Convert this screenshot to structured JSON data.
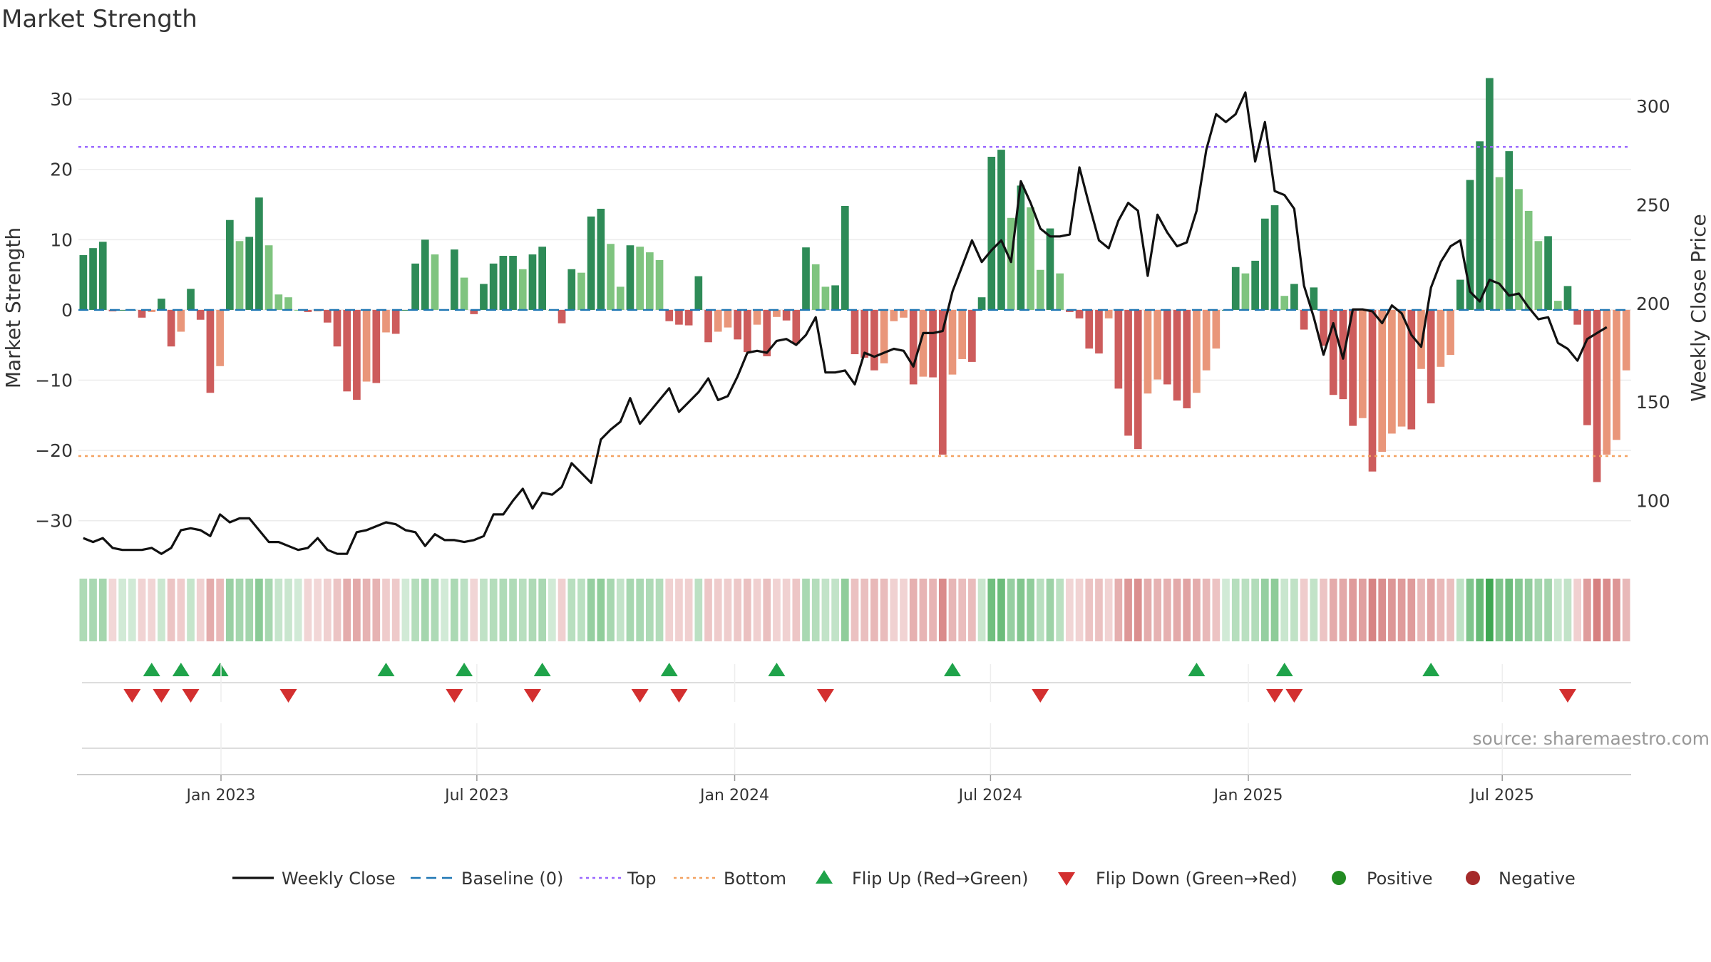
{
  "chart_data": {
    "type": "bar",
    "title": "Market Strength",
    "source": "source: sharemaestro.com",
    "x_ticks": [
      "Jan 2023",
      "Jul 2023",
      "Jan 2024",
      "Jul 2024",
      "Jan 2025",
      "Jul 2025"
    ],
    "y_left": {
      "label": "Market Strength",
      "ticks": [
        -30,
        -20,
        -10,
        0,
        10,
        20,
        30
      ],
      "range": [
        -35,
        36
      ]
    },
    "y_right": {
      "label": "Weekly Close Price",
      "ticks": [
        100,
        150,
        200,
        250,
        300
      ],
      "range": [
        72,
        325
      ]
    },
    "top_threshold": 23.2,
    "bottom_threshold": -20.8,
    "series": [
      {
        "name": "Weekly Close",
        "type": "line",
        "color": "#111111",
        "values": [
          81,
          79,
          81,
          76,
          75,
          75,
          75,
          76,
          73,
          76,
          85,
          86,
          85,
          82,
          93,
          89,
          91,
          91,
          85,
          79,
          79,
          77,
          75,
          76,
          81,
          75,
          73,
          73,
          84,
          85,
          87,
          89,
          88,
          85,
          84,
          77,
          83,
          80,
          80,
          79,
          80,
          82,
          93,
          93,
          100,
          106,
          96,
          104,
          103,
          107,
          119,
          114,
          109,
          131,
          136,
          140,
          152,
          139,
          145,
          151,
          157,
          145,
          150,
          155,
          162,
          151,
          153,
          163,
          175,
          176,
          175,
          181,
          182,
          179,
          184,
          193,
          165,
          165,
          166,
          159,
          175,
          173,
          175,
          177,
          176,
          168,
          185,
          185,
          186,
          206,
          219,
          232,
          221,
          227,
          232,
          221,
          262,
          251,
          238,
          234,
          234,
          235,
          269,
          250,
          232,
          228,
          242,
          251,
          247,
          214,
          245,
          236,
          229,
          231,
          247,
          278,
          296,
          292,
          296,
          307,
          272,
          292,
          257,
          255,
          248,
          209,
          193,
          174,
          190,
          172,
          197,
          197,
          196,
          190,
          199,
          195,
          184,
          178,
          208,
          221,
          229,
          232,
          206,
          201,
          212,
          210,
          204,
          205,
          198,
          192,
          193,
          180,
          177,
          171,
          182,
          185,
          188
        ]
      },
      {
        "name": "Market Strength",
        "type": "bar",
        "values": [
          7.8,
          8.8,
          9.7,
          -0.2,
          0.0,
          0.0,
          -1.1,
          -0.3,
          1.6,
          -5.2,
          -3.1,
          3.0,
          -1.4,
          -11.8,
          -8.0,
          12.8,
          9.8,
          10.4,
          16.0,
          9.2,
          2.2,
          1.8,
          0.0,
          -0.3,
          -0.2,
          -1.8,
          -5.2,
          -11.6,
          -12.8,
          -10.2,
          -10.4,
          -3.2,
          -3.4,
          0.0,
          6.6,
          10.0,
          7.9,
          0.0,
          8.6,
          4.6,
          -0.6,
          3.7,
          6.6,
          7.7,
          7.7,
          5.8,
          7.9,
          9.0,
          0.0,
          -1.9,
          5.8,
          5.3,
          13.3,
          14.4,
          9.4,
          3.3,
          9.2,
          9.0,
          8.2,
          7.1,
          -1.6,
          -2.1,
          -2.2,
          4.8,
          -4.6,
          -3.1,
          -2.5,
          -4.2,
          -6.0,
          -2.1,
          -6.6,
          -1.0,
          -1.5,
          -4.8,
          8.9,
          6.5,
          3.3,
          3.5,
          14.8,
          -6.3,
          -6.8,
          -8.6,
          -7.6,
          -1.6,
          -1.1,
          -10.6,
          -9.5,
          -9.6,
          -20.6,
          -9.2,
          -7.0,
          -7.4,
          1.8,
          21.8,
          22.8,
          13.1,
          17.7,
          14.6,
          5.7,
          11.6,
          5.2,
          -0.3,
          -1.2,
          -5.5,
          -6.2,
          -1.2,
          -11.2,
          -17.9,
          -19.8,
          -11.9,
          -9.9,
          -10.6,
          -12.9,
          -14.0,
          -11.8,
          -8.6,
          -5.5,
          0.0,
          6.1,
          5.2,
          7.0,
          13.0,
          14.9,
          2.0,
          3.7,
          -2.8,
          3.2,
          -5.1,
          -12.1,
          -12.7,
          -16.5,
          -15.4,
          -23.0,
          -20.2,
          -17.6,
          -16.6,
          -17.0,
          -8.4,
          -13.3,
          -8.1,
          -6.4,
          4.3,
          18.5,
          24.0,
          33.0,
          18.9,
          22.6,
          17.2,
          14.1,
          9.8,
          10.5,
          1.3,
          3.4,
          -2.1,
          -16.4,
          -24.5,
          -20.6,
          -18.5,
          -8.6
        ]
      },
      {
        "name": "Baseline (0)",
        "type": "line",
        "value": 0,
        "color": "#1f77b4"
      },
      {
        "name": "Top",
        "type": "line",
        "value": 23.2,
        "color": "#9966ff"
      },
      {
        "name": "Bottom",
        "type": "line",
        "value": -20.8,
        "color": "#f4a261"
      },
      {
        "name": "Flip Up (Red→Green)",
        "type": "marker",
        "color": "#1fa34a",
        "x_index": [
          7,
          10,
          14,
          31,
          39,
          47,
          60,
          71,
          89,
          114,
          123,
          138
        ]
      },
      {
        "name": "Flip Down (Green→Red)",
        "type": "marker",
        "color": "#d32f2f",
        "x_index": [
          5,
          8,
          11,
          21,
          38,
          46,
          57,
          61,
          76,
          98,
          122,
          124,
          152
        ]
      }
    ],
    "legend": {
      "position": "bottom",
      "entries": [
        {
          "label": "Weekly Close",
          "kind": "line-solid",
          "color": "#111111"
        },
        {
          "label": "Baseline (0)",
          "kind": "line-dashed",
          "color": "#1f77b4"
        },
        {
          "label": "Top",
          "kind": "line-dotted",
          "color": "#9966ff"
        },
        {
          "label": "Bottom",
          "kind": "line-dotted",
          "color": "#f4a261"
        },
        {
          "label": "Flip Up (Red→Green)",
          "kind": "triangle-up",
          "color": "#1fa34a"
        },
        {
          "label": "Flip Down (Green→Red)",
          "kind": "triangle-down",
          "color": "#d32f2f"
        },
        {
          "label": "Positive",
          "kind": "dot",
          "color": "#228b22"
        },
        {
          "label": "Negative",
          "kind": "dot",
          "color": "#a52a2a"
        }
      ]
    },
    "colors": {
      "strong_green": "#2e8b57",
      "light_green": "#7fc47f",
      "strong_red": "#cd5c5c",
      "light_red": "#e9967a"
    }
  }
}
